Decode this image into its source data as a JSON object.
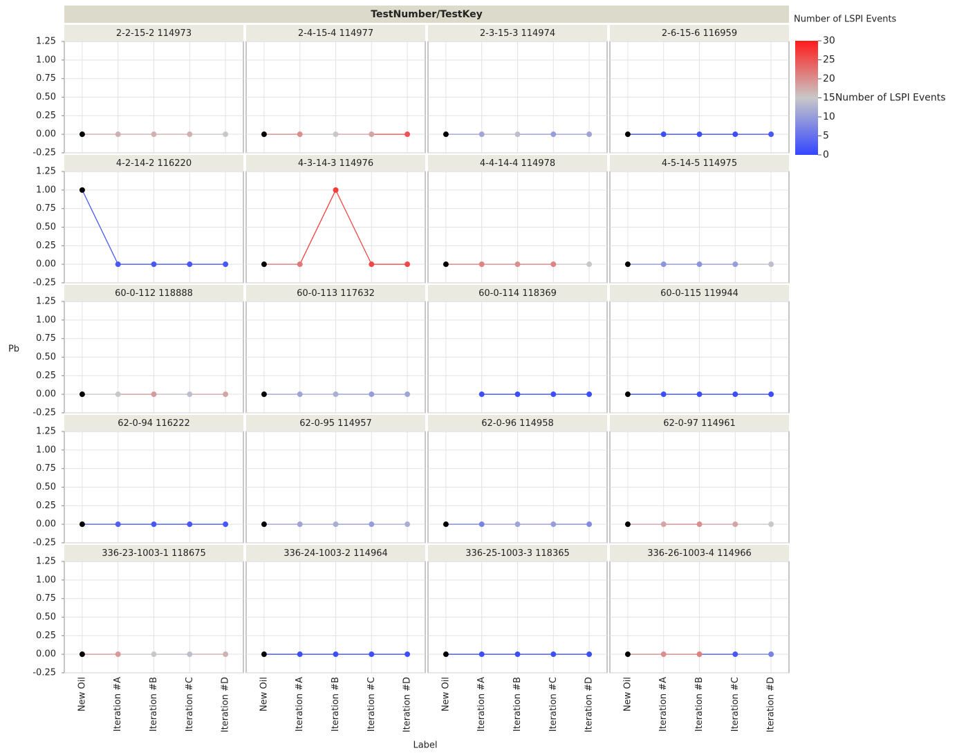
{
  "chart_data": {
    "type": "line",
    "title": "TestNumber/TestKey",
    "y_label": "Pb",
    "x_label": "Label",
    "categories": [
      "New Oil",
      "Iteration #A",
      "Iteration #B",
      "Iteration #C",
      "Iteration #D"
    ],
    "ylim": [
      -0.25,
      1.25
    ],
    "yticks": [
      {
        "value": 1.25,
        "label": "1.25"
      },
      {
        "value": 1,
        "label": "1.00"
      },
      {
        "value": 0.75,
        "label": "0.75"
      },
      {
        "value": 0.5,
        "label": "0.50"
      },
      {
        "value": 0.25,
        "label": "0.25"
      },
      {
        "value": 0,
        "label": "0.00"
      },
      {
        "value": -0.25,
        "label": "-0.25"
      }
    ],
    "grid": true,
    "legend_position": "right",
    "legend_title": "Number of LSPI Events",
    "colorbar_label": "Number of LSPI Events",
    "clim": [
      0,
      30
    ],
    "cticks": [
      30,
      25,
      20,
      15,
      10,
      5,
      0
    ],
    "colors": [
      "#3346ff",
      "#c8c8c8",
      "#ff1a1a"
    ],
    "missing_color": "#000000",
    "panels": [
      {
        "title": "2-2-15-2 114973",
        "values": [
          0,
          0,
          0,
          0,
          0
        ],
        "lspi": [
          null,
          17,
          17,
          17,
          15
        ]
      },
      {
        "title": "2-4-15-4 114977",
        "values": [
          0,
          0,
          0,
          0,
          0
        ],
        "lspi": [
          null,
          20,
          15,
          18,
          25
        ]
      },
      {
        "title": "2-3-15-3 114974",
        "values": [
          0,
          0,
          0,
          0,
          0
        ],
        "lspi": [
          null,
          11,
          14,
          10,
          11
        ]
      },
      {
        "title": "2-6-15-6 116959",
        "values": [
          0,
          0,
          0,
          0,
          0
        ],
        "lspi": [
          null,
          1,
          1,
          1,
          2
        ]
      },
      {
        "title": "4-2-14-2 116220",
        "values": [
          1,
          0,
          0,
          0,
          0
        ],
        "lspi": [
          null,
          2,
          2,
          2,
          2
        ]
      },
      {
        "title": "4-3-14-3 114976",
        "values": [
          0,
          0,
          1,
          0,
          0
        ],
        "lspi": [
          null,
          22,
          27,
          26,
          26
        ]
      },
      {
        "title": "4-4-14-4 114978",
        "values": [
          0,
          0,
          0,
          0,
          0
        ],
        "lspi": [
          null,
          21,
          20,
          21,
          15
        ]
      },
      {
        "title": "4-5-14-5 114975",
        "values": [
          0,
          0,
          0,
          0,
          0
        ],
        "lspi": [
          null,
          9,
          9,
          10,
          14
        ]
      },
      {
        "title": "60-0-112 118888",
        "values": [
          0,
          0,
          0,
          0,
          0
        ],
        "lspi": [
          null,
          15,
          19,
          14,
          18
        ]
      },
      {
        "title": "60-0-113 117632",
        "values": [
          0,
          0,
          0,
          0,
          0
        ],
        "lspi": [
          null,
          11,
          12,
          10,
          11
        ]
      },
      {
        "title": "60-0-114 118369",
        "values": [
          null,
          0,
          0,
          0,
          0
        ],
        "lspi": [
          null,
          1,
          1,
          1,
          1
        ]
      },
      {
        "title": "60-0-115 119944",
        "values": [
          0,
          0,
          0,
          0,
          0
        ],
        "lspi": [
          null,
          1,
          1,
          1,
          1
        ]
      },
      {
        "title": "62-0-94 116222",
        "values": [
          0,
          0,
          0,
          0,
          0
        ],
        "lspi": [
          null,
          3,
          2,
          2,
          2
        ]
      },
      {
        "title": "62-0-95 114957",
        "values": [
          0,
          0,
          0,
          0,
          0
        ],
        "lspi": [
          null,
          11,
          12,
          10,
          12
        ]
      },
      {
        "title": "62-0-96 114958",
        "values": [
          0,
          0,
          0,
          0,
          0
        ],
        "lspi": [
          null,
          7,
          11,
          10,
          8
        ]
      },
      {
        "title": "62-0-97 114961",
        "values": [
          0,
          0,
          0,
          0,
          0
        ],
        "lspi": [
          null,
          18,
          20,
          18,
          15
        ]
      },
      {
        "title": "336-23-1003-1 118675",
        "values": [
          0,
          0,
          0,
          0,
          0
        ],
        "lspi": [
          null,
          19,
          15,
          14,
          17
        ]
      },
      {
        "title": "336-24-1003-2 114964",
        "values": [
          0,
          0,
          0,
          0,
          0
        ],
        "lspi": [
          null,
          1,
          1,
          1,
          1
        ]
      },
      {
        "title": "336-25-1003-3 118365",
        "values": [
          0,
          0,
          0,
          0,
          0
        ],
        "lspi": [
          null,
          1,
          1,
          1,
          1
        ]
      },
      {
        "title": "336-26-1003-4 114966",
        "values": [
          0,
          0,
          0,
          0,
          0
        ],
        "lspi": [
          null,
          20,
          21,
          2,
          7
        ]
      }
    ]
  }
}
